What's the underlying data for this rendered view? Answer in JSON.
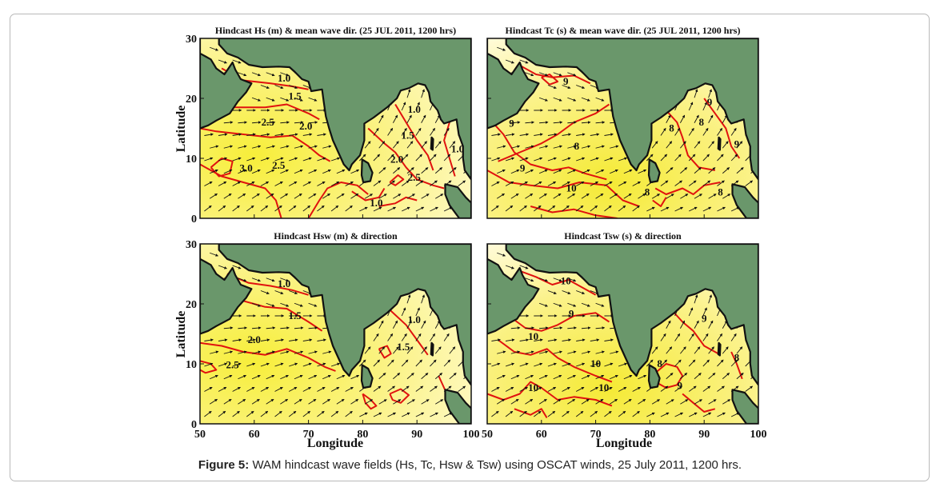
{
  "caption": {
    "label": "Figure 5:",
    "text": "WAM hindcast wave fields (Hs, Tc, Hsw & Tsw) using OSCAT winds, 25 July 2011, 1200 hrs."
  },
  "axes": {
    "xlabel": "Longitude",
    "ylabel": "Latitude",
    "x_ticks": [
      "50",
      "60",
      "70",
      "80",
      "90",
      "100"
    ],
    "y_ticks": [
      "0",
      "10",
      "20",
      "30"
    ],
    "lon_range": [
      50,
      100
    ],
    "lat_range": [
      0,
      30
    ]
  },
  "colors": {
    "land": "#6a976b",
    "sea_light": "#fffbd0",
    "sea_dark": "#f7ee3a",
    "contour": "#e0120f",
    "arrow": "#111111"
  },
  "panels": [
    {
      "id": "hs",
      "title": "Hindcast Hs (m) & mean wave dir. (25 JUL 2011, 1200 hrs)",
      "contour_labels": [
        {
          "text": "1.0",
          "lon": 65.5,
          "lat": 22.8
        },
        {
          "text": "1.5",
          "lon": 67.5,
          "lat": 19.8
        },
        {
          "text": "2.5",
          "lon": 62.5,
          "lat": 15.5
        },
        {
          "text": "2.0",
          "lon": 69.5,
          "lat": 14.8
        },
        {
          "text": "3.0",
          "lon": 58.5,
          "lat": 7.8
        },
        {
          "text": "2.5",
          "lon": 64.5,
          "lat": 8.3
        },
        {
          "text": "1.0",
          "lon": 89.5,
          "lat": 17.6
        },
        {
          "text": "1.5",
          "lon": 88.3,
          "lat": 13.3
        },
        {
          "text": "2.0",
          "lon": 86.3,
          "lat": 9.3
        },
        {
          "text": "2.5",
          "lon": 89.5,
          "lat": 6.3
        },
        {
          "text": "1.0",
          "lon": 97.5,
          "lat": 11.0
        },
        {
          "text": "1.0",
          "lon": 82.5,
          "lat": 2.0
        }
      ]
    },
    {
      "id": "tc",
      "title": "Hindcast Tc (s) & mean wave dir. (25 JUL 2011, 1200 hrs)",
      "contour_labels": [
        {
          "text": "9",
          "lon": 64.5,
          "lat": 22.3
        },
        {
          "text": "9",
          "lon": 54.5,
          "lat": 15.3
        },
        {
          "text": "8",
          "lon": 66.5,
          "lat": 11.5
        },
        {
          "text": "9",
          "lon": 56.5,
          "lat": 7.8
        },
        {
          "text": "10",
          "lon": 65.5,
          "lat": 4.5
        },
        {
          "text": "8",
          "lon": 79.5,
          "lat": 3.8
        },
        {
          "text": "8",
          "lon": 84.0,
          "lat": 14.5
        },
        {
          "text": "8",
          "lon": 89.5,
          "lat": 15.5
        },
        {
          "text": "9",
          "lon": 91.0,
          "lat": 18.8
        },
        {
          "text": "9",
          "lon": 96.0,
          "lat": 11.8
        },
        {
          "text": "8",
          "lon": 93.0,
          "lat": 3.8
        }
      ]
    },
    {
      "id": "hsw",
      "title": "Hindcast Hsw (m) & direction",
      "contour_labels": [
        {
          "text": "1.0",
          "lon": 65.5,
          "lat": 22.8
        },
        {
          "text": "1.5",
          "lon": 67.5,
          "lat": 17.5
        },
        {
          "text": "2.0",
          "lon": 60.0,
          "lat": 13.5
        },
        {
          "text": "2.5",
          "lon": 56.0,
          "lat": 9.3
        },
        {
          "text": "1.0",
          "lon": 89.5,
          "lat": 16.8
        },
        {
          "text": "1.5",
          "lon": 87.5,
          "lat": 12.3
        }
      ]
    },
    {
      "id": "tsw",
      "title": "Hindcast Tsw (s) & direction",
      "contour_labels": [
        {
          "text": "10",
          "lon": 64.5,
          "lat": 23.3
        },
        {
          "text": "9",
          "lon": 65.5,
          "lat": 17.8
        },
        {
          "text": "10",
          "lon": 58.5,
          "lat": 14.0
        },
        {
          "text": "10",
          "lon": 70.0,
          "lat": 9.5
        },
        {
          "text": "10",
          "lon": 58.5,
          "lat": 5.5
        },
        {
          "text": "10",
          "lon": 71.5,
          "lat": 5.5
        },
        {
          "text": "9",
          "lon": 90.0,
          "lat": 17.0
        },
        {
          "text": "8",
          "lon": 81.8,
          "lat": 9.5
        },
        {
          "text": "9",
          "lon": 85.5,
          "lat": 5.8
        },
        {
          "text": "8",
          "lon": 96.0,
          "lat": 10.5
        }
      ]
    }
  ]
}
